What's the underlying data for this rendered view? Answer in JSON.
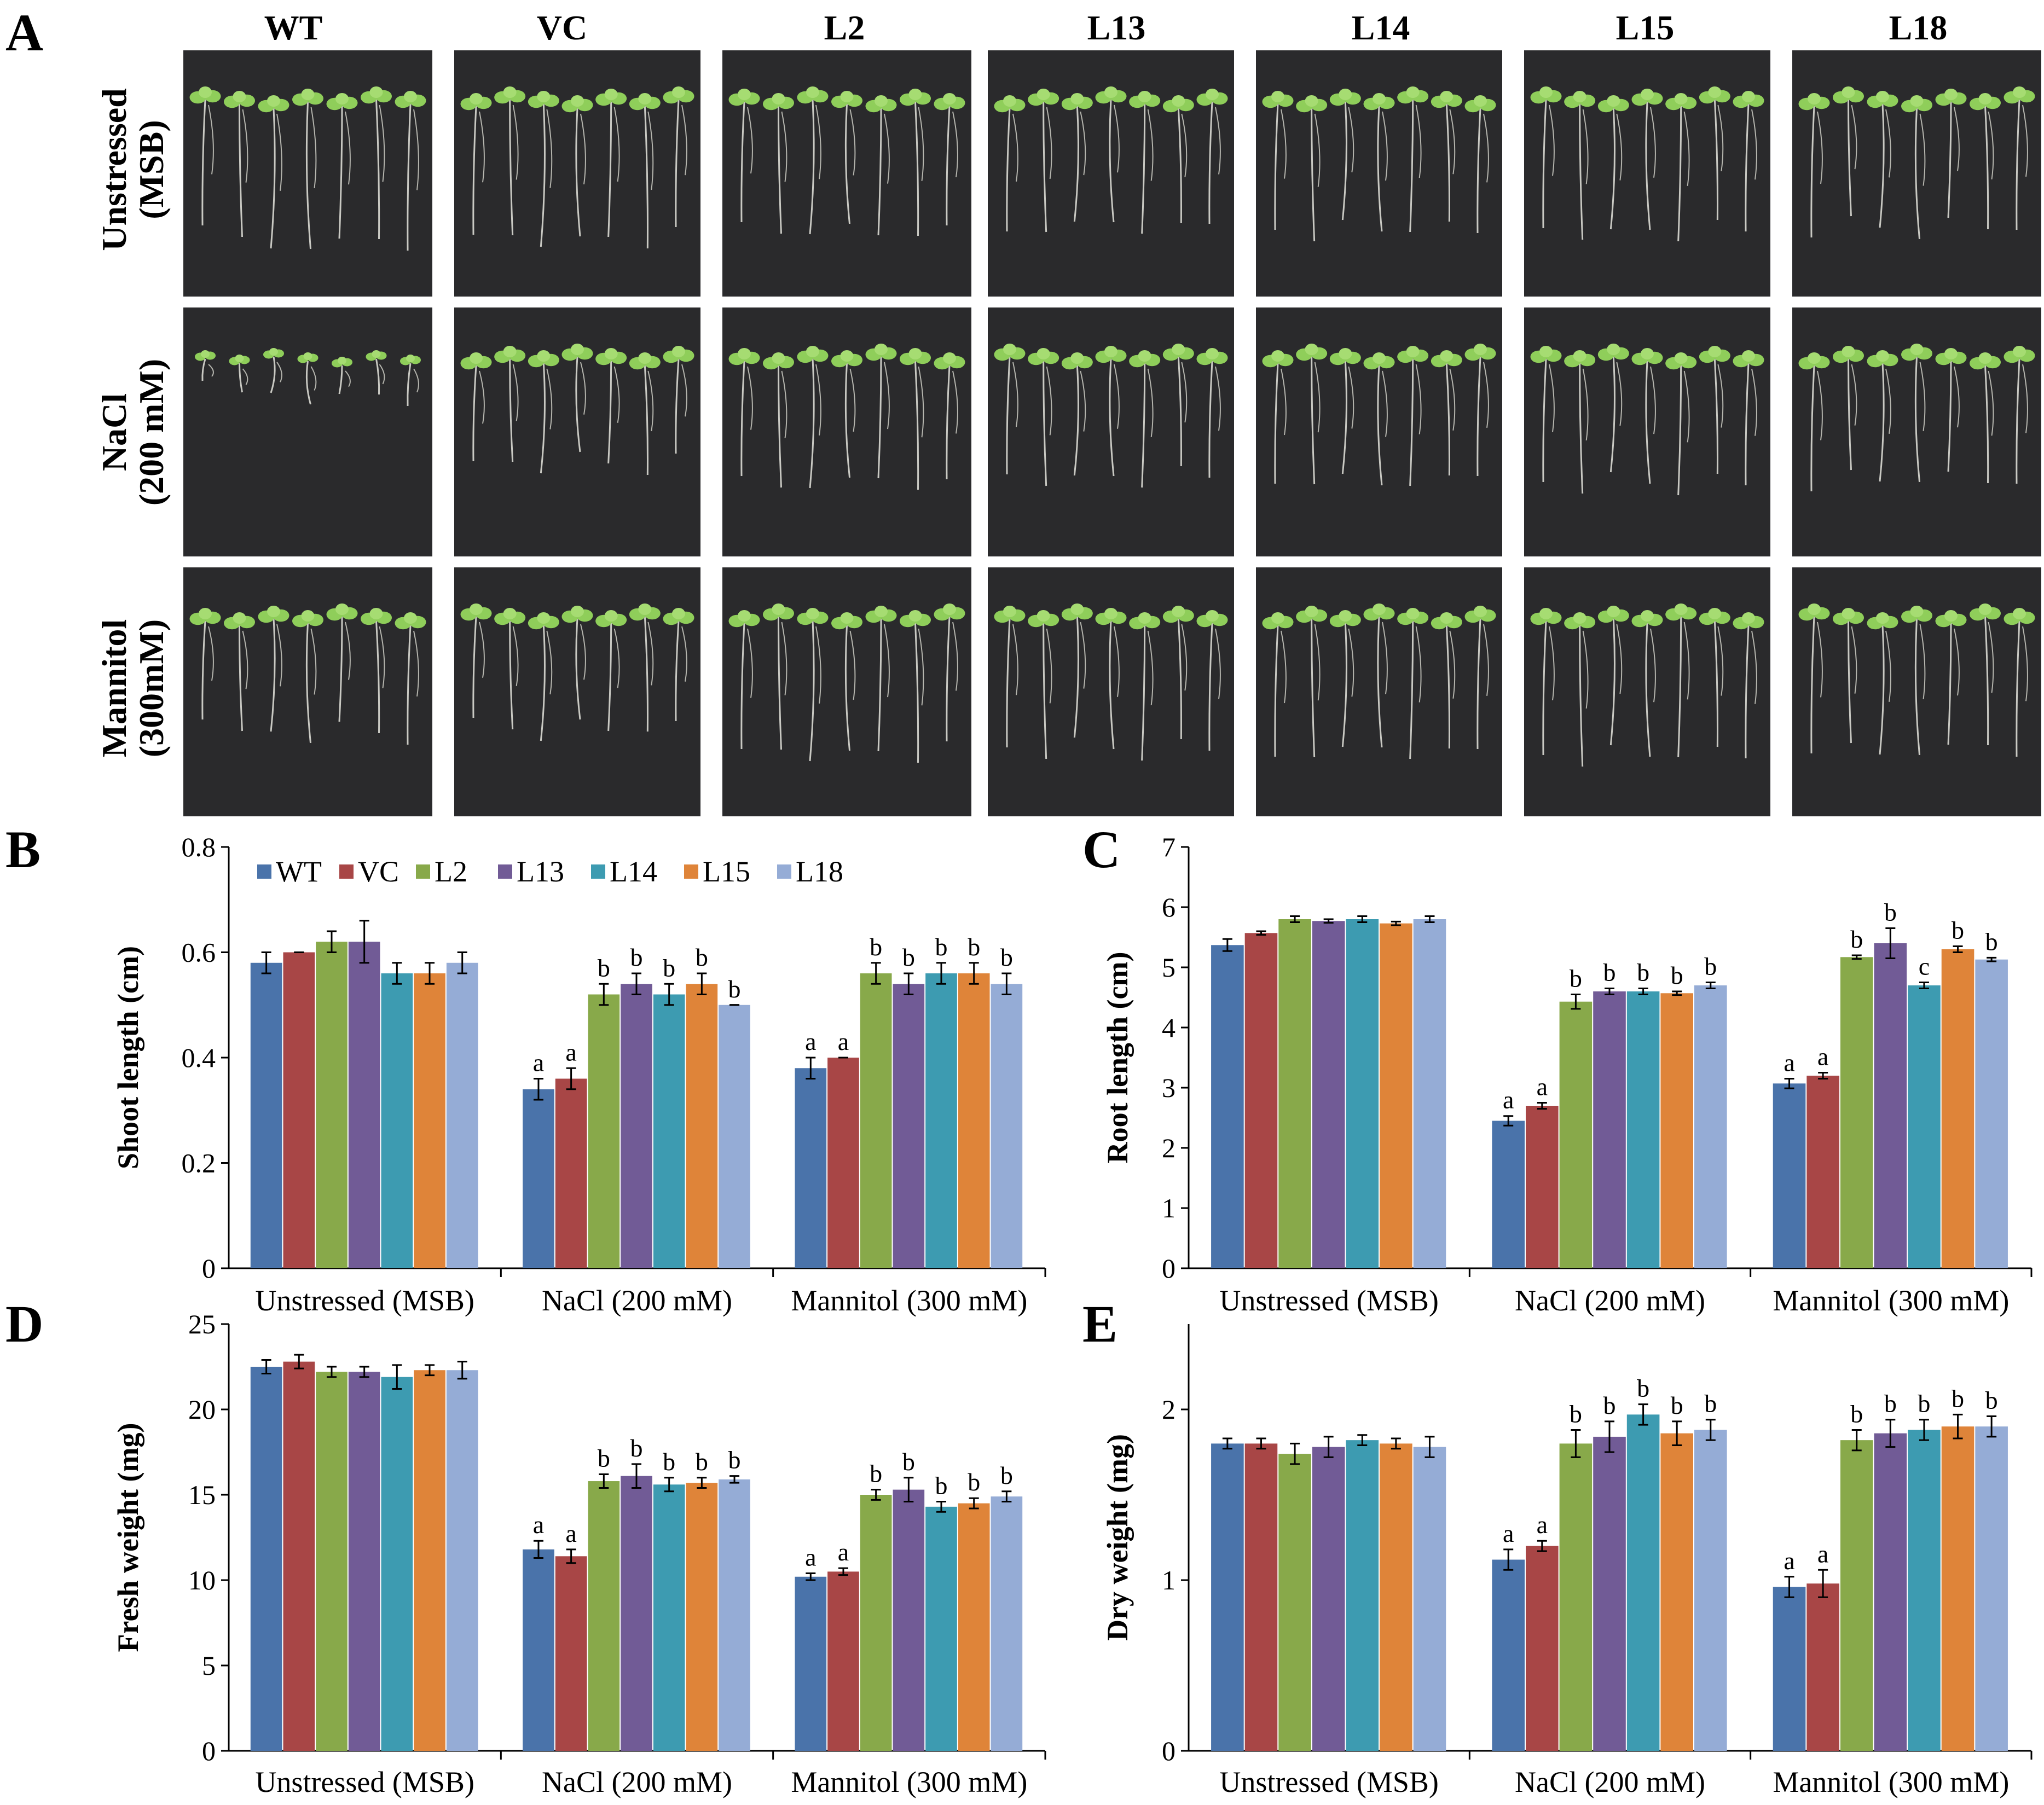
{
  "panel_a": {
    "letter": "A",
    "columns": [
      "WT",
      "VC",
      "L2",
      "L13",
      "L14",
      "L15",
      "L18"
    ],
    "rows": [
      {
        "line1": "Unstressed",
        "line2": "(MSB)"
      },
      {
        "line1": "NaCl",
        "line2": "(200 mM)"
      },
      {
        "line1": "Mannitol",
        "line2": "(300mM)"
      }
    ],
    "photo_background": "#2a2a2c",
    "plant_color": "#8fce5a"
  },
  "colors": {
    "WT": "#4a73aa",
    "VC": "#a84646",
    "L2": "#88a94a",
    "L13": "#715b96",
    "L14": "#3d9bb1",
    "L15": "#df8439",
    "L18": "#95acd6"
  },
  "legend": [
    "WT",
    "VC",
    "L2",
    "L13",
    "L14",
    "L15",
    "L18"
  ],
  "chart_data": [
    {
      "id": "B",
      "letter": "B",
      "type": "bar",
      "categories": [
        "Unstressed (MSB)",
        "NaCl (200 mM)",
        "Mannitol (300 mM)"
      ],
      "ylabel": "Shoot length (cm)",
      "ylim": [
        0,
        0.8
      ],
      "yticks": [
        "0",
        "0.2",
        "0.4",
        "0.6",
        "0.8"
      ],
      "series": [
        {
          "name": "WT",
          "values": [
            0.58,
            0.34,
            0.38
          ],
          "errors": [
            0.02,
            0.02,
            0.02
          ],
          "sig": [
            "",
            "a",
            "a"
          ]
        },
        {
          "name": "VC",
          "values": [
            0.6,
            0.36,
            0.4
          ],
          "errors": [
            0.0,
            0.02,
            0.0
          ],
          "sig": [
            "",
            "a",
            "a"
          ]
        },
        {
          "name": "L2",
          "values": [
            0.62,
            0.52,
            0.56
          ],
          "errors": [
            0.02,
            0.02,
            0.02
          ],
          "sig": [
            "",
            "b",
            "b"
          ]
        },
        {
          "name": "L13",
          "values": [
            0.62,
            0.54,
            0.54
          ],
          "errors": [
            0.04,
            0.02,
            0.02
          ],
          "sig": [
            "",
            "b",
            "b"
          ]
        },
        {
          "name": "L14",
          "values": [
            0.56,
            0.52,
            0.56
          ],
          "errors": [
            0.02,
            0.02,
            0.02
          ],
          "sig": [
            "",
            "b",
            "b"
          ]
        },
        {
          "name": "L15",
          "values": [
            0.56,
            0.54,
            0.56
          ],
          "errors": [
            0.02,
            0.02,
            0.02
          ],
          "sig": [
            "",
            "b",
            "b"
          ]
        },
        {
          "name": "L18",
          "values": [
            0.58,
            0.5,
            0.54
          ],
          "errors": [
            0.02,
            0.0,
            0.02
          ],
          "sig": [
            "",
            "b",
            "b"
          ]
        }
      ]
    },
    {
      "id": "C",
      "letter": "C",
      "type": "bar",
      "categories": [
        "Unstressed (MSB)",
        "NaCl (200 mM)",
        "Mannitol (300 mM)"
      ],
      "ylabel": "Root length (cm)",
      "ylim": [
        0,
        7
      ],
      "yticks": [
        "0",
        "1",
        "2",
        "3",
        "4",
        "5",
        "6",
        "7"
      ],
      "series": [
        {
          "name": "WT",
          "values": [
            5.37,
            2.45,
            3.07
          ],
          "errors": [
            0.1,
            0.08,
            0.08
          ],
          "sig": [
            "",
            "a",
            "a"
          ]
        },
        {
          "name": "VC",
          "values": [
            5.57,
            2.7,
            3.2
          ],
          "errors": [
            0.03,
            0.05,
            0.05
          ],
          "sig": [
            "",
            "a",
            "a"
          ]
        },
        {
          "name": "L2",
          "values": [
            5.8,
            4.43,
            5.17
          ],
          "errors": [
            0.05,
            0.12,
            0.03
          ],
          "sig": [
            "",
            "b",
            "b"
          ]
        },
        {
          "name": "L13",
          "values": [
            5.77,
            4.6,
            5.4
          ],
          "errors": [
            0.03,
            0.05,
            0.25
          ],
          "sig": [
            "",
            "b",
            "b"
          ]
        },
        {
          "name": "L14",
          "values": [
            5.8,
            4.6,
            4.7
          ],
          "errors": [
            0.05,
            0.05,
            0.05
          ],
          "sig": [
            "",
            "b",
            "c"
          ]
        },
        {
          "name": "L15",
          "values": [
            5.73,
            4.57,
            5.3
          ],
          "errors": [
            0.03,
            0.03,
            0.05
          ],
          "sig": [
            "",
            "b",
            "b"
          ]
        },
        {
          "name": "L18",
          "values": [
            5.8,
            4.7,
            5.13
          ],
          "errors": [
            0.05,
            0.05,
            0.03
          ],
          "sig": [
            "",
            "b",
            "b"
          ]
        }
      ]
    },
    {
      "id": "D",
      "letter": "D",
      "type": "bar",
      "categories": [
        "Unstressed (MSB)",
        "NaCl (200 mM)",
        "Mannitol (300 mM)"
      ],
      "ylabel": "Fresh weight (mg)",
      "ylim": [
        0,
        25
      ],
      "yticks": [
        "0",
        "5",
        "10",
        "15",
        "20",
        "25"
      ],
      "series": [
        {
          "name": "WT",
          "values": [
            22.5,
            11.8,
            10.2
          ],
          "errors": [
            0.4,
            0.5,
            0.2
          ],
          "sig": [
            "",
            "a",
            "a"
          ]
        },
        {
          "name": "VC",
          "values": [
            22.8,
            11.4,
            10.5
          ],
          "errors": [
            0.4,
            0.4,
            0.2
          ],
          "sig": [
            "",
            "a",
            "a"
          ]
        },
        {
          "name": "L2",
          "values": [
            22.2,
            15.8,
            15.0
          ],
          "errors": [
            0.3,
            0.4,
            0.3
          ],
          "sig": [
            "",
            "b",
            "b"
          ]
        },
        {
          "name": "L13",
          "values": [
            22.2,
            16.1,
            15.3
          ],
          "errors": [
            0.3,
            0.7,
            0.7
          ],
          "sig": [
            "",
            "b",
            "b"
          ]
        },
        {
          "name": "L14",
          "values": [
            21.9,
            15.6,
            14.3
          ],
          "errors": [
            0.7,
            0.4,
            0.3
          ],
          "sig": [
            "",
            "b",
            "b"
          ]
        },
        {
          "name": "L15",
          "values": [
            22.3,
            15.7,
            14.5
          ],
          "errors": [
            0.3,
            0.3,
            0.3
          ],
          "sig": [
            "",
            "b",
            "b"
          ]
        },
        {
          "name": "L18",
          "values": [
            22.3,
            15.9,
            14.9
          ],
          "errors": [
            0.5,
            0.2,
            0.3
          ],
          "sig": [
            "",
            "b",
            "b"
          ]
        }
      ]
    },
    {
      "id": "E",
      "letter": "E",
      "type": "bar",
      "categories": [
        "Unstressed (MSB)",
        "NaCl (200 mM)",
        "Mannitol (300 mM)"
      ],
      "ylabel": "Dry weight (mg)",
      "ylim": [
        0,
        2.5
      ],
      "yticks": [
        "0",
        "1",
        "2"
      ],
      "ytick_values": [
        0,
        1,
        2
      ],
      "series": [
        {
          "name": "WT",
          "values": [
            1.8,
            1.12,
            0.96
          ],
          "errors": [
            0.03,
            0.06,
            0.06
          ],
          "sig": [
            "",
            "a",
            "a"
          ]
        },
        {
          "name": "VC",
          "values": [
            1.8,
            1.2,
            0.98
          ],
          "errors": [
            0.03,
            0.03,
            0.08
          ],
          "sig": [
            "",
            "a",
            "a"
          ]
        },
        {
          "name": "L2",
          "values": [
            1.74,
            1.8,
            1.82
          ],
          "errors": [
            0.06,
            0.08,
            0.06
          ],
          "sig": [
            "",
            "b",
            "b"
          ]
        },
        {
          "name": "L13",
          "values": [
            1.78,
            1.84,
            1.86
          ],
          "errors": [
            0.06,
            0.09,
            0.08
          ],
          "sig": [
            "",
            "b",
            "b"
          ]
        },
        {
          "name": "L14",
          "values": [
            1.82,
            1.97,
            1.88
          ],
          "errors": [
            0.03,
            0.06,
            0.06
          ],
          "sig": [
            "",
            "b",
            "b"
          ]
        },
        {
          "name": "L15",
          "values": [
            1.8,
            1.86,
            1.9
          ],
          "errors": [
            0.03,
            0.07,
            0.07
          ],
          "sig": [
            "",
            "b",
            "b"
          ]
        },
        {
          "name": "L18",
          "values": [
            1.78,
            1.88,
            1.9
          ],
          "errors": [
            0.06,
            0.06,
            0.06
          ],
          "sig": [
            "",
            "b",
            "b"
          ]
        }
      ]
    }
  ]
}
